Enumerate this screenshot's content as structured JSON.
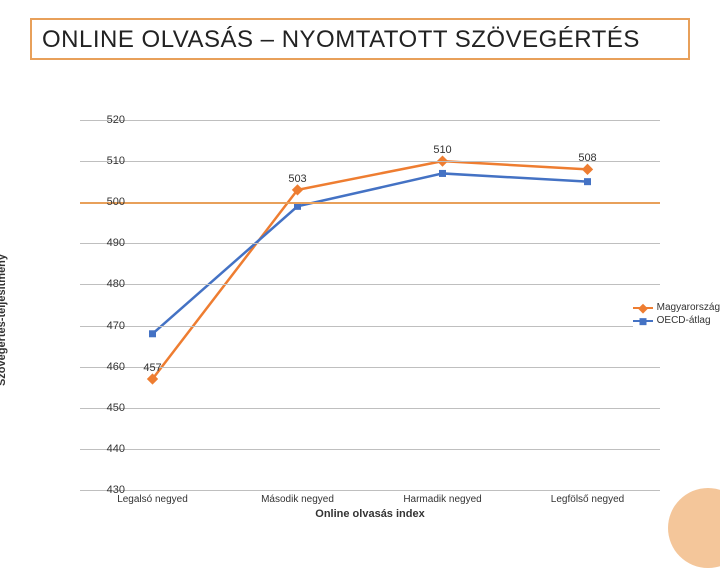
{
  "title": "ONLINE OLVASÁS – NYOMTATOTT SZÖVEGÉRTÉS",
  "chart": {
    "type": "line",
    "xlabel": "Online olvasás index",
    "ylabel": "Szövegértés-teljesítmény",
    "categories": [
      "Legalsó negyed",
      "Második negyed",
      "Harmadik negyed",
      "Legfölső negyed"
    ],
    "ylim": [
      430,
      520
    ],
    "ytick_step": 10,
    "background": "#ffffff",
    "grid_color": "#bfbfbf",
    "accent_grid_color": "#e8a05a",
    "accent_grid_at": 500,
    "axis_fontsize": 11,
    "tick_fontsize": 11,
    "series": [
      {
        "name": "Magyarország",
        "color": "#ee7d31",
        "marker": "diamond",
        "marker_size": 8,
        "line_width": 2.5,
        "values": [
          457,
          503,
          510,
          508
        ],
        "show_labels": [
          457,
          503,
          510,
          508
        ]
      },
      {
        "name": "OECD-átlag",
        "color": "#4472c4",
        "marker": "square",
        "marker_size": 7,
        "line_width": 2.5,
        "values": [
          468,
          499,
          507,
          505
        ],
        "show_labels": []
      }
    ],
    "decor_disc_color": "#f4c69a"
  }
}
